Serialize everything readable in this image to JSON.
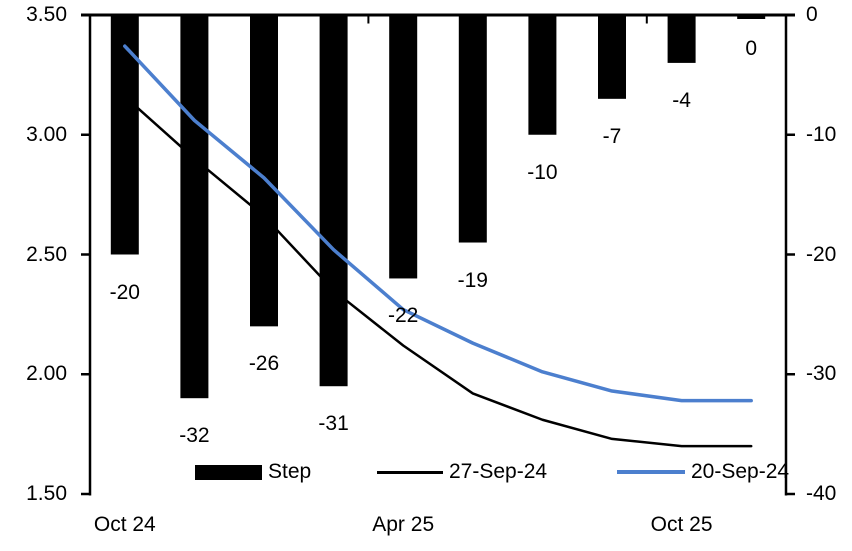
{
  "chart_data": {
    "type": "combo_bar_line",
    "title": "",
    "n_categories": 10,
    "x_axis": {
      "tick_labels": [
        {
          "text": "Oct 24",
          "category_index": 0
        },
        {
          "text": "Apr 25",
          "category_index": 4
        },
        {
          "text": "Oct 25",
          "category_index": 8
        }
      ],
      "boundary_ticks_after_category": [
        4,
        8
      ]
    },
    "left_axis": {
      "tick_labels": [
        "3.50",
        "3.00",
        "2.50",
        "2.00",
        "1.50"
      ],
      "min": 1.5,
      "max": 3.5
    },
    "right_axis": {
      "tick_labels": [
        "0",
        "-10",
        "-20",
        "-30",
        "-40"
      ],
      "min": -40,
      "max": 0
    },
    "bar_series": {
      "name": "Step",
      "axis": "right",
      "color": "#000000",
      "values": [
        -20,
        -32,
        -26,
        -31,
        -22,
        -19,
        -10,
        -7,
        -4,
        0
      ],
      "data_labels": [
        "-20",
        "-32",
        "-26",
        "-31",
        "-22",
        "-19",
        "-10",
        "-7",
        "-4",
        "0"
      ]
    },
    "line_series": [
      {
        "name": "27-Sep-24",
        "axis": "left",
        "color": "#000000",
        "stroke_width": 2.5,
        "values": [
          3.16,
          2.9,
          2.66,
          2.35,
          2.12,
          1.92,
          1.81,
          1.73,
          1.7,
          1.7
        ]
      },
      {
        "name": "20-Sep-24",
        "axis": "left",
        "color": "#4C7FCE",
        "stroke_width": 3.5,
        "values": [
          3.37,
          3.06,
          2.82,
          2.52,
          2.27,
          2.13,
          2.01,
          1.93,
          1.89,
          1.89
        ]
      }
    ],
    "legend": {
      "position": "bottom-inside",
      "items": [
        {
          "label": "Step",
          "marker": "bar",
          "color": "#000000"
        },
        {
          "label": "27-Sep-24",
          "marker": "line",
          "color": "#000000"
        },
        {
          "label": "20-Sep-24",
          "marker": "line",
          "color": "#4C7FCE"
        }
      ]
    }
  }
}
